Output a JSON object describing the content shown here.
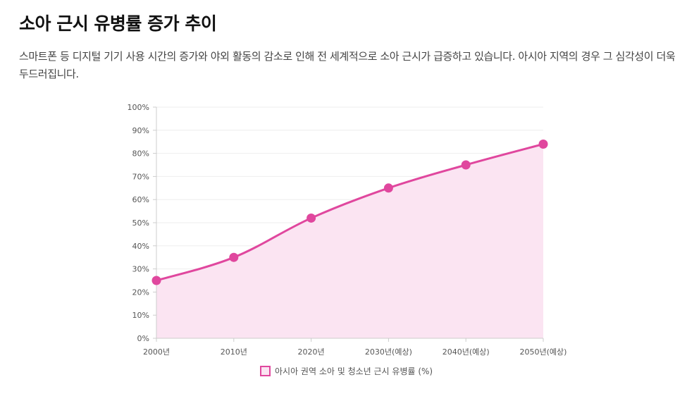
{
  "page": {
    "title": "소아 근시 유병률 증가 추이",
    "description": "스마트폰 등 디지털 기기 사용 시간의 증가와 야외 활동의 감소로 인해 전 세계적으로 소아 근시가 급증하고 있습니다. 아시아 지역의 경우 그 심각성이 더욱 두드러집니다."
  },
  "colors": {
    "line": "#e0479e",
    "fill": "#fbe4f2",
    "grid": "#eeeeee",
    "axis": "#cccccc"
  },
  "chart_data": {
    "type": "area",
    "title": "",
    "xlabel": "",
    "ylabel": "",
    "categories": [
      "2000년",
      "2010년",
      "2020년",
      "2030년(예상)",
      "2040년(예상)",
      "2050년(예상)"
    ],
    "series": [
      {
        "name": "아시아 권역 소아 및 청소년 근시 유병률 (%)",
        "values": [
          25,
          35,
          52,
          65,
          75,
          84
        ]
      }
    ],
    "ylim": [
      0,
      100
    ],
    "yticks": [
      "0%",
      "10%",
      "20%",
      "30%",
      "40%",
      "50%",
      "60%",
      "70%",
      "80%",
      "90%",
      "100%"
    ],
    "grid": true,
    "legend": "bottom-center"
  }
}
